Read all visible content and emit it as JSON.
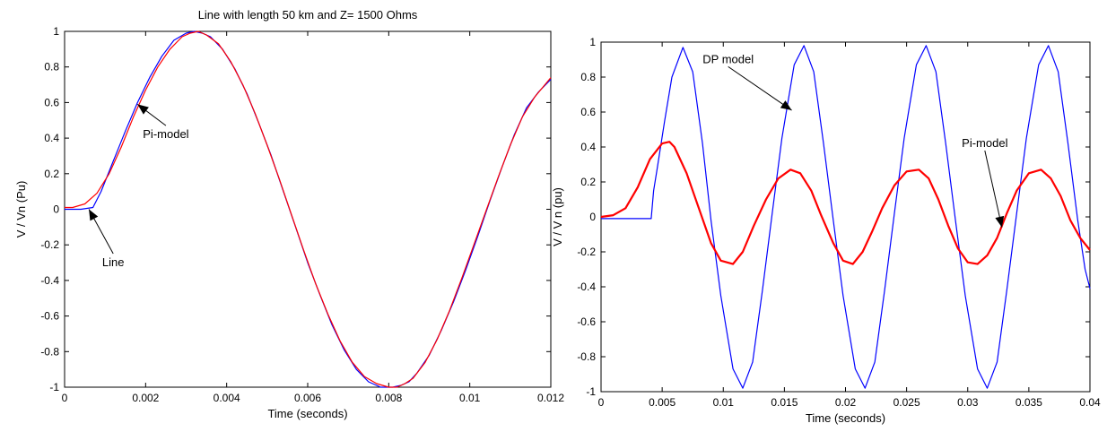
{
  "chart_data": [
    {
      "type": "line",
      "title": "Line with length 50 km and Z= 1500 Ohms",
      "xlabel": "Time (seconds)",
      "ylabel": "V / Vn (Pu)",
      "xlim": [
        0,
        0.012
      ],
      "ylim": [
        -1,
        1
      ],
      "grid": false,
      "xticks": [
        0,
        0.002,
        0.004,
        0.006,
        0.008,
        0.01,
        0.012
      ],
      "xtick_labels": [
        "0",
        "0.002",
        "0.004",
        "0.006",
        "0.008",
        "0.01",
        "0.012"
      ],
      "yticks": [
        -1,
        -0.8,
        -0.6,
        -0.4,
        -0.2,
        0,
        0.2,
        0.4,
        0.6,
        0.8,
        1
      ],
      "ytick_labels": [
        "-1",
        "-0.8",
        "-0.6",
        "-0.4",
        "-0.2",
        "0",
        "0.2",
        "0.4",
        "0.6",
        "0.8",
        "1"
      ],
      "series": [
        {
          "name": "Line",
          "color": "#0000ff",
          "x": [
            0,
            0.0004,
            0.0007,
            0.0009,
            0.0012,
            0.0015,
            0.0018,
            0.0021,
            0.0024,
            0.0027,
            0.003,
            0.0032,
            0.0034,
            0.0036,
            0.0039,
            0.0042,
            0.0045,
            0.0048,
            0.0051,
            0.0054,
            0.0057,
            0.006,
            0.0063,
            0.0066,
            0.0069,
            0.0072,
            0.0075,
            0.0078,
            0.0081,
            0.0083,
            0.0085,
            0.0087,
            0.009,
            0.0093,
            0.0096,
            0.0099,
            0.0102,
            0.0105,
            0.0108,
            0.0111,
            0.0114,
            0.0117,
            0.012
          ],
          "y": [
            0,
            0,
            0.01,
            0.1,
            0.27,
            0.44,
            0.6,
            0.74,
            0.86,
            0.95,
            0.99,
            1.0,
            0.99,
            0.97,
            0.9,
            0.79,
            0.65,
            0.48,
            0.3,
            0.1,
            -0.1,
            -0.3,
            -0.48,
            -0.65,
            -0.79,
            -0.9,
            -0.97,
            -1.0,
            -1.0,
            -0.99,
            -0.97,
            -0.92,
            -0.82,
            -0.68,
            -0.52,
            -0.34,
            -0.15,
            0.05,
            0.24,
            0.42,
            0.57,
            0.66,
            0.73
          ]
        },
        {
          "name": "Pi-model",
          "color": "#ff0000",
          "x": [
            0,
            0.0002,
            0.0005,
            0.0008,
            0.0011,
            0.0014,
            0.0017,
            0.002,
            0.0023,
            0.0026,
            0.0029,
            0.0031,
            0.0033,
            0.0035,
            0.0038,
            0.0041,
            0.0044,
            0.0047,
            0.005,
            0.0053,
            0.0056,
            0.0059,
            0.0062,
            0.0065,
            0.0068,
            0.0071,
            0.0074,
            0.0077,
            0.008,
            0.0082,
            0.0084,
            0.0086,
            0.0089,
            0.0092,
            0.0095,
            0.0098,
            0.0101,
            0.0104,
            0.0107,
            0.011,
            0.0113,
            0.0116,
            0.012
          ],
          "y": [
            0.01,
            0.01,
            0.03,
            0.09,
            0.2,
            0.35,
            0.52,
            0.67,
            0.8,
            0.9,
            0.97,
            0.99,
            1.0,
            0.98,
            0.93,
            0.83,
            0.7,
            0.54,
            0.36,
            0.17,
            -0.03,
            -0.23,
            -0.42,
            -0.59,
            -0.74,
            -0.86,
            -0.94,
            -0.98,
            -1.0,
            -1.0,
            -0.98,
            -0.95,
            -0.86,
            -0.73,
            -0.57,
            -0.39,
            -0.2,
            -0.01,
            0.18,
            0.36,
            0.52,
            0.63,
            0.74
          ]
        }
      ],
      "annotations": [
        {
          "text": "Pi-model",
          "x": 0.0025,
          "y": 0.4,
          "arrow_to": [
            0.0018,
            0.59
          ]
        },
        {
          "text": "Line",
          "x": 0.0012,
          "y": -0.32,
          "arrow_to": [
            0.0006,
            0.0
          ]
        }
      ]
    },
    {
      "type": "line",
      "title": "",
      "xlabel": "Time (seconds)",
      "ylabel": "V / V n (pu)",
      "xlim": [
        0,
        0.04
      ],
      "ylim": [
        -1,
        1
      ],
      "grid": false,
      "xticks": [
        0,
        0.005,
        0.01,
        0.015,
        0.02,
        0.025,
        0.03,
        0.035,
        0.04
      ],
      "xtick_labels": [
        "0",
        "0.005",
        "0.01",
        "0.015",
        "0.02",
        "0.025",
        "0.03",
        "0.035",
        "0.04"
      ],
      "yticks": [
        -1,
        -0.8,
        -0.6,
        -0.4,
        -0.2,
        0,
        0.2,
        0.4,
        0.6,
        0.8,
        1
      ],
      "ytick_labels": [
        "-1",
        "-0.8",
        "-0.6",
        "-0.4",
        "-0.2",
        "0",
        "0.2",
        "0.4",
        "0.6",
        "0.8",
        "1"
      ],
      "series": [
        {
          "name": "DP model",
          "color": "#0000ff",
          "x": [
            0,
            0.0041,
            0.0043,
            0.0046,
            0.0052,
            0.0058,
            0.0067,
            0.0075,
            0.0083,
            0.009,
            0.0098,
            0.0108,
            0.0116,
            0.0124,
            0.0132,
            0.014,
            0.0148,
            0.0158,
            0.0166,
            0.0174,
            0.0182,
            0.019,
            0.0198,
            0.0208,
            0.0216,
            0.0224,
            0.0232,
            0.024,
            0.0248,
            0.0258,
            0.0266,
            0.0274,
            0.0282,
            0.029,
            0.0298,
            0.0308,
            0.0316,
            0.0324,
            0.0332,
            0.034,
            0.0348,
            0.0358,
            0.0366,
            0.0374,
            0.0382,
            0.039,
            0.0396,
            0.04
          ],
          "y": [
            -0.01,
            -0.01,
            0.15,
            0.28,
            0.55,
            0.8,
            0.97,
            0.83,
            0.42,
            -0.02,
            -0.45,
            -0.87,
            -0.98,
            -0.83,
            -0.42,
            0.02,
            0.45,
            0.87,
            0.98,
            0.83,
            0.42,
            -0.02,
            -0.45,
            -0.87,
            -0.98,
            -0.83,
            -0.42,
            0.02,
            0.45,
            0.87,
            0.98,
            0.83,
            0.42,
            -0.02,
            -0.45,
            -0.87,
            -0.98,
            -0.83,
            -0.42,
            0.02,
            0.45,
            0.87,
            0.98,
            0.83,
            0.42,
            -0.02,
            -0.3,
            -0.41
          ]
        },
        {
          "name": "Pi-model",
          "color": "#ff0000",
          "x": [
            0,
            0.001,
            0.002,
            0.003,
            0.004,
            0.005,
            0.0056,
            0.006,
            0.007,
            0.008,
            0.009,
            0.0098,
            0.0108,
            0.0116,
            0.0125,
            0.0135,
            0.0145,
            0.0155,
            0.0163,
            0.0172,
            0.018,
            0.019,
            0.0198,
            0.0206,
            0.0214,
            0.0222,
            0.023,
            0.024,
            0.025,
            0.026,
            0.0268,
            0.0276,
            0.0284,
            0.0292,
            0.03,
            0.0308,
            0.0316,
            0.0324,
            0.0332,
            0.034,
            0.035,
            0.036,
            0.0368,
            0.0376,
            0.0384,
            0.0392,
            0.04
          ],
          "y": [
            0,
            0.01,
            0.05,
            0.17,
            0.33,
            0.42,
            0.43,
            0.4,
            0.25,
            0.05,
            -0.15,
            -0.25,
            -0.27,
            -0.2,
            -0.05,
            0.1,
            0.22,
            0.27,
            0.25,
            0.15,
            0.01,
            -0.15,
            -0.25,
            -0.27,
            -0.2,
            -0.08,
            0.05,
            0.18,
            0.26,
            0.27,
            0.22,
            0.1,
            -0.05,
            -0.18,
            -0.26,
            -0.27,
            -0.22,
            -0.12,
            0.02,
            0.15,
            0.25,
            0.27,
            0.22,
            0.12,
            -0.02,
            -0.12,
            -0.19
          ]
        }
      ],
      "annotations": [
        {
          "text": "DP model",
          "x": 0.0104,
          "y": 0.88,
          "arrow_to": [
            0.0156,
            0.61
          ]
        },
        {
          "text": "Pi-model",
          "x": 0.0314,
          "y": 0.4,
          "arrow_to": [
            0.0328,
            -0.06
          ]
        }
      ]
    }
  ]
}
